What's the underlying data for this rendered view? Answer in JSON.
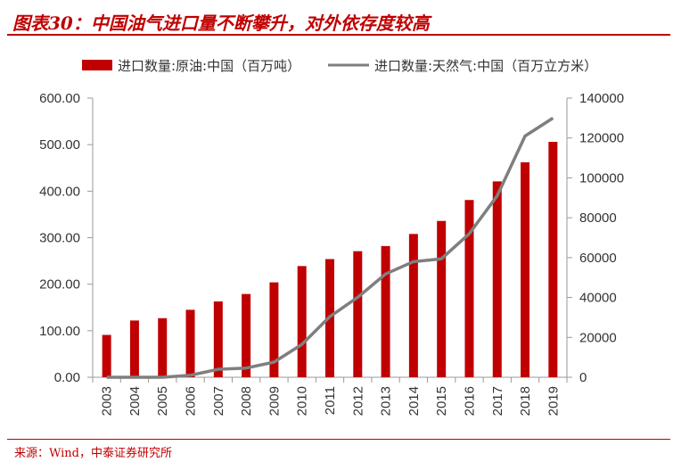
{
  "header": {
    "title": "图表30：中国油气进口量不断攀升，对外依存度较高"
  },
  "footer": {
    "source": "来源：Wind，中泰证券研究所"
  },
  "colors": {
    "bar": "#c00000",
    "line": "#7f7f7f",
    "accent": "#c00000"
  },
  "chart_data": {
    "type": "bar",
    "categories": [
      "2003",
      "2004",
      "2005",
      "2006",
      "2007",
      "2008",
      "2009",
      "2010",
      "2011",
      "2012",
      "2013",
      "2014",
      "2015",
      "2016",
      "2017",
      "2018",
      "2019"
    ],
    "series": [
      {
        "name": "进口数量:原油:中国（百万吨）",
        "type": "bar",
        "axis": "left",
        "values": [
          91,
          122,
          127,
          145,
          163,
          179,
          204,
          239,
          254,
          271,
          282,
          308,
          336,
          381,
          421,
          462,
          506
        ]
      },
      {
        "name": "进口数量:天然气:中国（百万立方米）",
        "type": "line",
        "axis": "right",
        "values": [
          0,
          0,
          0,
          1000,
          4000,
          4600,
          7600,
          16500,
          30400,
          40100,
          51800,
          58000,
          59400,
          72000,
          91000,
          121000,
          130000
        ]
      }
    ],
    "left_axis": {
      "ylim": [
        0,
        600
      ],
      "ticks": [
        "0.00",
        "100.00",
        "200.00",
        "300.00",
        "400.00",
        "500.00",
        "600.00"
      ]
    },
    "right_axis": {
      "ylim": [
        0,
        140000
      ],
      "ticks": [
        "0",
        "20000",
        "40000",
        "60000",
        "80000",
        "100000",
        "120000",
        "140000"
      ]
    },
    "legend_position": "top",
    "grid": false
  }
}
